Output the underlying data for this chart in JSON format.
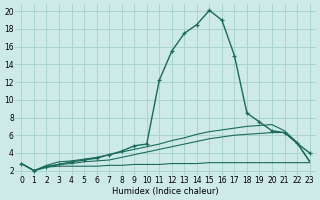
{
  "xlabel": "Humidex (Indice chaleur)",
  "xlim": [
    -0.5,
    23.5
  ],
  "ylim": [
    1.5,
    20.8
  ],
  "xticks": [
    0,
    1,
    2,
    3,
    4,
    5,
    6,
    7,
    8,
    9,
    10,
    11,
    12,
    13,
    14,
    15,
    16,
    17,
    18,
    19,
    20,
    21,
    22,
    23
  ],
  "yticks": [
    2,
    4,
    6,
    8,
    10,
    12,
    14,
    16,
    18,
    20
  ],
  "bg_color": "#cdeae8",
  "grid_color": "#a8d4d0",
  "line_color": "#1a6b5a",
  "flat_line_x": [
    0,
    1,
    2,
    3,
    4,
    5,
    6,
    7,
    8,
    9,
    10,
    11,
    12,
    13,
    14,
    15,
    16,
    17,
    18,
    19,
    20,
    21,
    22,
    23
  ],
  "flat_line_y": [
    2.8,
    2.0,
    2.4,
    2.5,
    2.5,
    2.5,
    2.5,
    2.6,
    2.6,
    2.7,
    2.7,
    2.7,
    2.8,
    2.8,
    2.8,
    2.9,
    2.9,
    2.9,
    2.9,
    2.9,
    2.9,
    2.9,
    2.9,
    2.9
  ],
  "mid_line_x": [
    0,
    1,
    2,
    3,
    4,
    5,
    6,
    7,
    8,
    9,
    10,
    11,
    12,
    13,
    14,
    15,
    16,
    17,
    18,
    19,
    20,
    21,
    22,
    23
  ],
  "mid_line_y": [
    2.8,
    2.0,
    2.5,
    2.7,
    2.8,
    3.0,
    3.1,
    3.2,
    3.5,
    3.8,
    4.1,
    4.4,
    4.7,
    5.0,
    5.3,
    5.6,
    5.8,
    6.0,
    6.1,
    6.2,
    6.3,
    6.3,
    5.1,
    3.0
  ],
  "upper_line_x": [
    0,
    1,
    2,
    3,
    4,
    5,
    6,
    7,
    8,
    9,
    10,
    11,
    12,
    13,
    14,
    15,
    16,
    17,
    18,
    19,
    20,
    21,
    22,
    23
  ],
  "upper_line_y": [
    2.8,
    2.0,
    2.6,
    3.0,
    3.1,
    3.3,
    3.5,
    3.8,
    4.1,
    4.4,
    4.7,
    5.0,
    5.4,
    5.7,
    6.1,
    6.4,
    6.6,
    6.8,
    7.0,
    7.1,
    7.2,
    6.5,
    5.2,
    3.1
  ],
  "main_x": [
    0,
    1,
    2,
    3,
    4,
    5,
    6,
    7,
    8,
    9,
    10,
    11,
    12,
    13,
    14,
    15,
    16,
    17,
    18,
    19,
    20,
    21,
    22,
    23
  ],
  "main_y": [
    2.8,
    2.0,
    2.4,
    2.7,
    3.0,
    3.2,
    3.4,
    3.8,
    4.2,
    4.8,
    5.0,
    12.2,
    15.5,
    17.5,
    18.5,
    20.1,
    19.0,
    15.0,
    8.5,
    7.5,
    6.5,
    6.3,
    5.1,
    4.0
  ]
}
